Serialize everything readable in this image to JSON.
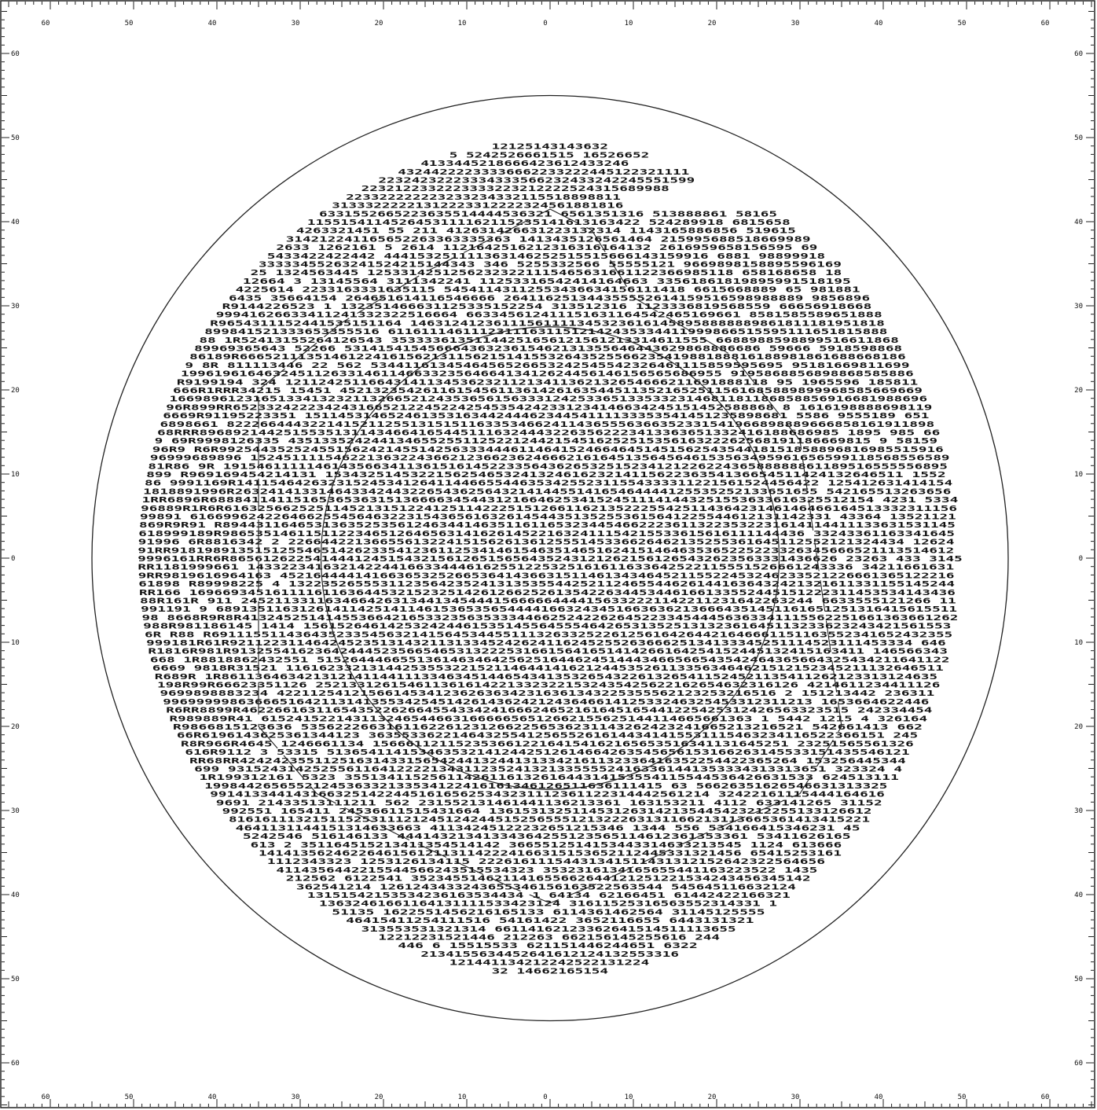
{
  "x_axis": {
    "tick_values": [
      60,
      50,
      40,
      30,
      20,
      10,
      0,
      10,
      20,
      30,
      40,
      50,
      60
    ],
    "tick_positions_mm": [
      -60,
      -50,
      -40,
      -30,
      -20,
      -10,
      0,
      10,
      20,
      30,
      40,
      50,
      60
    ]
  },
  "y_axis": {
    "tick_values": [
      60,
      50,
      40,
      30,
      20,
      10,
      0,
      10,
      20,
      30,
      40,
      50,
      60
    ],
    "tick_positions_mm": [
      60,
      50,
      40,
      30,
      20,
      10,
      0,
      -10,
      -20,
      -30,
      -40,
      -50,
      -60
    ]
  },
  "map": {
    "outer_circle_radius_mm": 55,
    "inner_circle_radius_mm": 27.5,
    "data_radius_mm": 49.5,
    "cell_pitch_mm": 1,
    "characters": [
      "1",
      "2",
      "3",
      "4",
      "5",
      "6",
      "8",
      "9",
      "R",
      "E",
      "B"
    ],
    "sample_rows": [
      {
        "y_mm": 47,
        "text": "4133445218666423612433246"
      },
      {
        "y_mm": 46,
        "text": "43244222233336662233222445122321111"
      },
      {
        "y_mm": 45,
        "text": "22324232223334333566232433242245551599"
      },
      {
        "y_mm": 44,
        "text": "2232122332223333223212222524315689988"
      },
      {
        "y_mm": 43,
        "text": "223322222223233234332115518898811"
      },
      {
        "y_mm": 42,
        "text": "31333222221312223312222324561881816"
      }
    ]
  }
}
